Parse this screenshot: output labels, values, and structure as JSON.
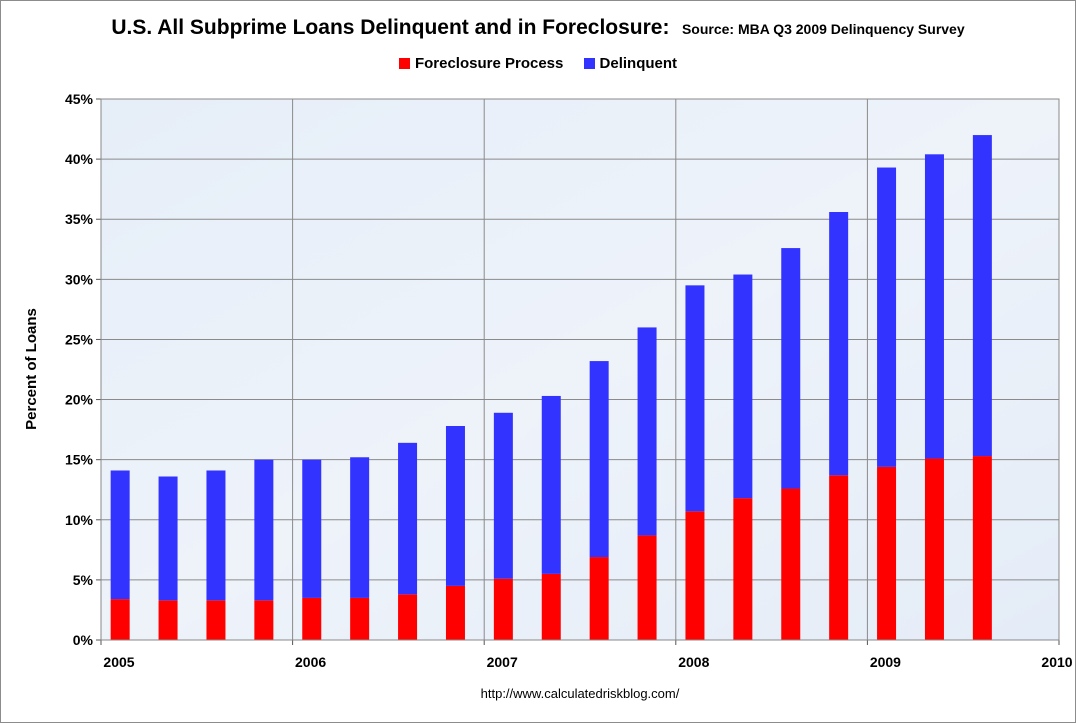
{
  "chart_data": {
    "type": "bar",
    "stacked": true,
    "title": "U.S. All Subprime Loans Delinquent and in Foreclosure:",
    "subtitle": "Source: MBA Q3 2009 Delinquency Survey",
    "ylabel": "Percent of Loans",
    "xlabel": "",
    "x": [
      "2005-Q1",
      "2005-Q2",
      "2005-Q3",
      "2005-Q4",
      "2006-Q1",
      "2006-Q2",
      "2006-Q3",
      "2006-Q4",
      "2007-Q1",
      "2007-Q2",
      "2007-Q3",
      "2007-Q4",
      "2008-Q1",
      "2008-Q2",
      "2008-Q3",
      "2008-Q4",
      "2009-Q1",
      "2009-Q2",
      "2009-Q3"
    ],
    "series": [
      {
        "name": "Foreclosure Process",
        "color": "#ff0000",
        "values": [
          3.4,
          3.3,
          3.3,
          3.3,
          3.5,
          3.5,
          3.8,
          4.5,
          5.1,
          5.5,
          6.9,
          8.7,
          10.7,
          11.8,
          12.6,
          13.7,
          14.4,
          15.1,
          15.3
        ]
      },
      {
        "name": "Delinquent",
        "color": "#3333ff",
        "values": [
          10.7,
          10.3,
          10.8,
          11.7,
          11.5,
          11.7,
          12.6,
          13.3,
          13.8,
          14.8,
          16.3,
          17.3,
          18.8,
          18.6,
          20.0,
          21.9,
          24.9,
          25.3,
          26.7
        ]
      }
    ],
    "ylim": [
      0,
      45
    ],
    "yticks": [
      0,
      5,
      10,
      15,
      20,
      25,
      30,
      35,
      40,
      45
    ],
    "ytick_labels": [
      "0%",
      "5%",
      "10%",
      "15%",
      "20%",
      "25%",
      "30%",
      "35%",
      "40%",
      "45%"
    ],
    "xlim": [
      2005,
      2010
    ],
    "xticks": [
      2005,
      2006,
      2007,
      2008,
      2009,
      2010
    ],
    "xtick_labels": [
      "2005",
      "2006",
      "2007",
      "2008",
      "2009",
      "2010"
    ],
    "grid": true,
    "legend_position": "top-center"
  },
  "source_url": "http://www.calculatedriskblog.com/"
}
